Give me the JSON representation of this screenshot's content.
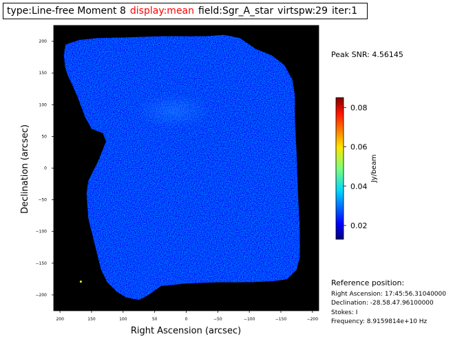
{
  "header": {
    "type": "type:Line-free Moment 8",
    "display": "display:mean",
    "field": "field:Sgr_A_star",
    "virtspw": "virtspw:29",
    "iter": "iter:1",
    "display_color": "#ff0000"
  },
  "peak_snr": "Peak SNR: 4.56145",
  "reference": {
    "title": "Reference position:",
    "ra": "Right Ascension: 17:45:56.31040000",
    "dec": "Declination: -28.58.47.96100000",
    "stokes": "Stokes: I",
    "freq": "Frequency: 8.9159814e+10 Hz"
  },
  "chart_data": {
    "type": "heatmap",
    "title": "",
    "xlabel": "Right Ascension (arcsec)",
    "ylabel": "Declination (arcsec)",
    "xlim": [
      210,
      -210
    ],
    "ylim": [
      -225,
      225
    ],
    "xticks": [
      200,
      150,
      100,
      50,
      0,
      -50,
      -100,
      -150,
      -200
    ],
    "yticks": [
      200,
      150,
      100,
      50,
      0,
      -50,
      -100,
      -150,
      -200
    ],
    "background_color": "#000000",
    "colormap": "jet",
    "colorbar": {
      "label": "Jy/beam",
      "range": [
        0.013,
        0.085
      ],
      "ticks": [
        0.02,
        0.04,
        0.06,
        0.08
      ],
      "tick_labels": [
        "0.02",
        "0.04",
        "0.06",
        "0.08"
      ]
    },
    "mask_outline_arcsec": [
      [
        191,
        195
      ],
      [
        170,
        202
      ],
      [
        140,
        205
      ],
      [
        100,
        206
      ],
      [
        40,
        208
      ],
      [
        -30,
        208
      ],
      [
        -60,
        210
      ],
      [
        -85,
        205
      ],
      [
        -110,
        188
      ],
      [
        -135,
        178
      ],
      [
        -155,
        163
      ],
      [
        -168,
        140
      ],
      [
        -172,
        115
      ],
      [
        -172,
        80
      ],
      [
        -175,
        20
      ],
      [
        -177,
        -40
      ],
      [
        -180,
        -100
      ],
      [
        -180,
        -140
      ],
      [
        -175,
        -160
      ],
      [
        -160,
        -175
      ],
      [
        -140,
        -178
      ],
      [
        -100,
        -180
      ],
      [
        -50,
        -180
      ],
      [
        0,
        -182
      ],
      [
        40,
        -186
      ],
      [
        60,
        -200
      ],
      [
        75,
        -208
      ],
      [
        95,
        -204
      ],
      [
        110,
        -195
      ],
      [
        125,
        -180
      ],
      [
        135,
        -160
      ],
      [
        145,
        -120
      ],
      [
        155,
        -80
      ],
      [
        158,
        -40
      ],
      [
        155,
        -20
      ],
      [
        140,
        10
      ],
      [
        127,
        42
      ],
      [
        132,
        55
      ],
      [
        150,
        62
      ],
      [
        160,
        80
      ],
      [
        172,
        112
      ],
      [
        180,
        130
      ],
      [
        188,
        147
      ],
      [
        192,
        160
      ],
      [
        194,
        178
      ]
    ],
    "emission_region_arcsec": {
      "ra": 20,
      "dec": 90
    },
    "point_marker": {
      "ra": 167,
      "dec": -179,
      "color": "#ffff00"
    }
  }
}
